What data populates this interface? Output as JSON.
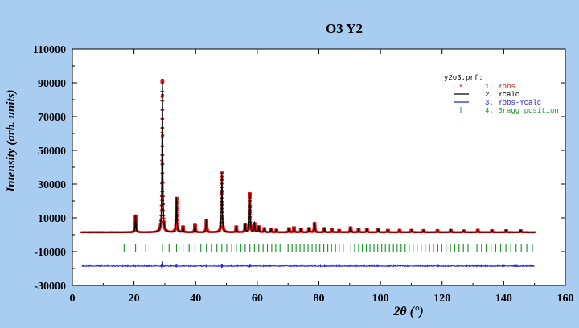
{
  "chart_data": {
    "type": "line",
    "title": "O3 Y2",
    "xlabel": "2θ (°)",
    "ylabel": "Intensity (arb. units)",
    "xlim": [
      0,
      160
    ],
    "ylim": [
      -30000,
      110000
    ],
    "x_ticks": [
      0,
      20,
      40,
      60,
      80,
      100,
      120,
      140,
      160
    ],
    "y_ticks": [
      -30000,
      -10000,
      10000,
      30000,
      50000,
      70000,
      90000,
      110000
    ],
    "legend": {
      "placement": "top-right",
      "file": "y2o3.prf:",
      "entries": [
        {
          "label": "1. Yobs",
          "color": "#e0161a",
          "marker": "*"
        },
        {
          "label": "2. Ycalc",
          "color": "#000000",
          "marker": "line"
        },
        {
          "label": "3. Yobs-Ycalc",
          "color": "#2020e0",
          "marker": "line"
        },
        {
          "label": "4. Bragg_position",
          "color": "#1f9a2e",
          "marker": "|"
        }
      ]
    },
    "background": 1500,
    "diff_offset": -18500,
    "bragg_y": -8000,
    "x_range": [
      3,
      150
    ],
    "peaks": [
      {
        "x": 20.5,
        "y": 11500
      },
      {
        "x": 29.2,
        "y": 91000
      },
      {
        "x": 33.8,
        "y": 22000
      },
      {
        "x": 35.9,
        "y": 5000
      },
      {
        "x": 39.8,
        "y": 6000
      },
      {
        "x": 43.5,
        "y": 8500
      },
      {
        "x": 48.5,
        "y": 37000
      },
      {
        "x": 53.2,
        "y": 5000
      },
      {
        "x": 56.1,
        "y": 6000
      },
      {
        "x": 57.6,
        "y": 24500
      },
      {
        "x": 59.1,
        "y": 7000
      },
      {
        "x": 60.5,
        "y": 5000
      },
      {
        "x": 62.3,
        "y": 4000
      },
      {
        "x": 64.5,
        "y": 3500
      },
      {
        "x": 66.2,
        "y": 3000
      },
      {
        "x": 70.3,
        "y": 4000
      },
      {
        "x": 71.9,
        "y": 4500
      },
      {
        "x": 74.2,
        "y": 3500
      },
      {
        "x": 76.8,
        "y": 4000
      },
      {
        "x": 78.6,
        "y": 7000
      },
      {
        "x": 81.8,
        "y": 4000
      },
      {
        "x": 84.2,
        "y": 3500
      },
      {
        "x": 86.6,
        "y": 3000
      },
      {
        "x": 90.3,
        "y": 4500
      },
      {
        "x": 92.9,
        "y": 3500
      },
      {
        "x": 95.6,
        "y": 3500
      },
      {
        "x": 99.3,
        "y": 3500
      },
      {
        "x": 102.4,
        "y": 3000
      },
      {
        "x": 106.2,
        "y": 3000
      },
      {
        "x": 110.1,
        "y": 3000
      },
      {
        "x": 114.0,
        "y": 2800
      },
      {
        "x": 118.5,
        "y": 2800
      },
      {
        "x": 122.8,
        "y": 3000
      },
      {
        "x": 127.0,
        "y": 2700
      },
      {
        "x": 131.6,
        "y": 3000
      },
      {
        "x": 136.2,
        "y": 2700
      },
      {
        "x": 140.8,
        "y": 2800
      },
      {
        "x": 145.5,
        "y": 2700
      }
    ],
    "bragg_positions": [
      16.8,
      20.5,
      23.8,
      29.2,
      31.4,
      33.8,
      35.9,
      37.9,
      39.8,
      41.7,
      43.5,
      45.2,
      46.9,
      48.5,
      50.1,
      51.7,
      53.2,
      54.7,
      56.1,
      57.6,
      59.1,
      60.5,
      61.9,
      63.3,
      64.7,
      66.0,
      67.4,
      70.0,
      71.3,
      72.6,
      73.9,
      75.2,
      76.5,
      77.8,
      79.1,
      80.3,
      81.6,
      82.9,
      84.1,
      85.4,
      86.6,
      87.9,
      90.4,
      91.6,
      92.9,
      94.1,
      95.4,
      96.6,
      97.9,
      99.1,
      100.4,
      101.6,
      102.9,
      104.2,
      105.4,
      106.7,
      108.0,
      109.3,
      110.6,
      111.9,
      113.2,
      114.5,
      115.9,
      117.2,
      118.6,
      119.9,
      121.3,
      122.7,
      124.1,
      125.5,
      126.9,
      128.4,
      131.3,
      132.8,
      134.3,
      135.9,
      137.4,
      139.0,
      140.7,
      142.3,
      144.0,
      145.7,
      147.5,
      149.3
    ]
  }
}
